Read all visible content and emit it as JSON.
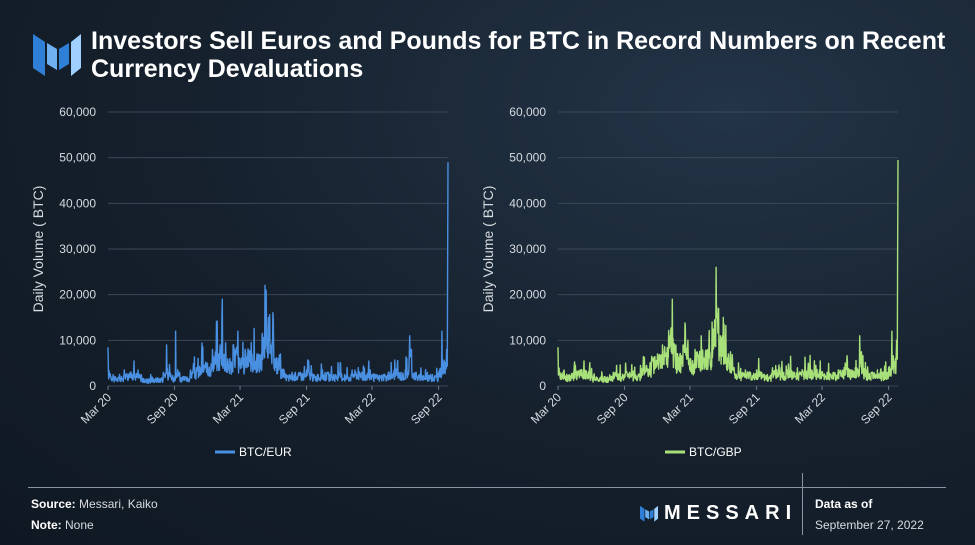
{
  "title": "Investors Sell Euros and Pounds for BTC in Record Numbers on Recent Currency Devaluations",
  "footer": {
    "source_label": "Source:",
    "source_value": "Messari, Kaiko",
    "note_label": "Note:",
    "note_value": "None",
    "brand": "MESSARI",
    "asof_label": "Data as of",
    "asof_date": "September 27, 2022"
  },
  "colors": {
    "eur": "#4a90e2",
    "gbp": "#a8e07a",
    "grid": "#3a4856",
    "axis_text": "#d6dbe0"
  },
  "chart_data": [
    {
      "type": "line",
      "ylabel": "Daily Volume ( BTC)",
      "xlabel": "",
      "ylim": [
        0,
        60000
      ],
      "yticks": [
        "0",
        "10,000",
        "20,000",
        "30,000",
        "40,000",
        "50,000",
        "60,000"
      ],
      "xticks": [
        "Mar 20",
        "Sep 20",
        "Mar 21",
        "Sep 21",
        "Mar 22",
        "Sep 22"
      ],
      "legend_position": "bottom",
      "grid": true,
      "series": [
        {
          "name": "BTC/EUR",
          "color": "#4a90e2",
          "x": [
            "2020-03-01",
            "2020-03-15",
            "2020-04-01",
            "2020-04-15",
            "2020-05-01",
            "2020-05-12",
            "2020-06-01",
            "2020-06-15",
            "2020-07-01",
            "2020-07-15",
            "2020-08-01",
            "2020-08-10",
            "2020-09-01",
            "2020-09-04",
            "2020-09-15",
            "2020-10-01",
            "2020-10-15",
            "2020-11-01",
            "2020-11-15",
            "2020-12-01",
            "2020-12-15",
            "2021-01-05",
            "2021-01-11",
            "2021-01-21",
            "2021-02-01",
            "2021-02-10",
            "2021-02-23",
            "2021-03-01",
            "2021-03-15",
            "2021-04-01",
            "2021-04-18",
            "2021-05-01",
            "2021-05-12",
            "2021-05-19",
            "2021-05-24",
            "2021-06-01",
            "2021-06-15",
            "2021-06-21",
            "2021-07-01",
            "2021-07-15",
            "2021-08-01",
            "2021-08-15",
            "2021-09-01",
            "2021-09-07",
            "2021-09-15",
            "2021-10-01",
            "2021-10-15",
            "2021-11-01",
            "2021-11-15",
            "2021-12-04",
            "2021-12-15",
            "2022-01-05",
            "2022-01-22",
            "2022-02-01",
            "2022-02-24",
            "2022-03-15",
            "2022-04-01",
            "2022-04-15",
            "2022-05-01",
            "2022-05-10",
            "2022-05-20",
            "2022-06-01",
            "2022-06-13",
            "2022-06-18",
            "2022-07-01",
            "2022-07-15",
            "2022-08-01",
            "2022-08-15",
            "2022-09-01",
            "2022-09-10",
            "2022-09-20",
            "2022-09-23",
            "2022-09-26",
            "2022-09-27"
          ],
          "y": [
            8500,
            2500,
            2000,
            3500,
            3000,
            5500,
            2500,
            1500,
            2000,
            1800,
            3000,
            9000,
            2000,
            12000,
            3000,
            2000,
            3500,
            4000,
            7500,
            5000,
            8000,
            9000,
            19000,
            7000,
            6000,
            9000,
            12000,
            6000,
            8000,
            9500,
            7000,
            11000,
            21000,
            15000,
            9000,
            14500,
            6000,
            7000,
            3500,
            2500,
            3000,
            3000,
            3500,
            5500,
            3000,
            2500,
            3500,
            3000,
            2500,
            5000,
            2500,
            3500,
            4000,
            3000,
            3500,
            2500,
            2500,
            3000,
            3500,
            5000,
            3000,
            3500,
            11000,
            8000,
            3000,
            2500,
            3000,
            2500,
            3000,
            12000,
            5000,
            8000,
            25000,
            49000
          ]
        }
      ]
    },
    {
      "type": "line",
      "ylabel": "Daily Volume ( BTC)",
      "xlabel": "",
      "ylim": [
        0,
        60000
      ],
      "yticks": [
        "0",
        "10,000",
        "20,000",
        "30,000",
        "40,000",
        "50,000",
        "60,000"
      ],
      "xticks": [
        "Mar 20",
        "Sep 20",
        "Mar 21",
        "Sep 21",
        "Mar 22",
        "Sep 22"
      ],
      "legend_position": "bottom",
      "grid": true,
      "series": [
        {
          "name": "BTC/GBP",
          "color": "#a8e07a",
          "x": [
            "2020-03-01",
            "2020-03-15",
            "2020-04-01",
            "2020-04-15",
            "2020-05-01",
            "2020-05-12",
            "2020-06-01",
            "2020-06-15",
            "2020-07-01",
            "2020-07-15",
            "2020-08-01",
            "2020-08-10",
            "2020-09-01",
            "2020-09-04",
            "2020-09-15",
            "2020-10-01",
            "2020-10-15",
            "2020-11-01",
            "2020-11-15",
            "2020-12-01",
            "2020-12-15",
            "2021-01-05",
            "2021-01-11",
            "2021-01-21",
            "2021-02-01",
            "2021-02-10",
            "2021-02-23",
            "2021-03-01",
            "2021-03-15",
            "2021-04-01",
            "2021-04-18",
            "2021-05-01",
            "2021-05-12",
            "2021-05-19",
            "2021-05-24",
            "2021-06-01",
            "2021-06-15",
            "2021-06-21",
            "2021-07-01",
            "2021-07-15",
            "2021-08-01",
            "2021-08-15",
            "2021-09-01",
            "2021-09-07",
            "2021-09-15",
            "2021-10-01",
            "2021-10-15",
            "2021-11-01",
            "2021-11-15",
            "2021-12-04",
            "2021-12-15",
            "2022-01-05",
            "2022-01-22",
            "2022-02-01",
            "2022-02-24",
            "2022-03-15",
            "2022-04-01",
            "2022-04-15",
            "2022-05-01",
            "2022-05-10",
            "2022-05-20",
            "2022-06-01",
            "2022-06-13",
            "2022-06-18",
            "2022-07-01",
            "2022-07-15",
            "2022-08-01",
            "2022-08-15",
            "2022-09-01",
            "2022-09-10",
            "2022-09-20",
            "2022-09-23",
            "2022-09-26",
            "2022-09-27"
          ],
          "y": [
            8500,
            3000,
            2500,
            4500,
            3500,
            5500,
            3000,
            2000,
            2500,
            2000,
            3000,
            4500,
            2500,
            5000,
            3000,
            2500,
            4500,
            4500,
            6500,
            7000,
            9000,
            11000,
            19000,
            9000,
            7000,
            9000,
            10000,
            6000,
            8000,
            11000,
            8000,
            14000,
            26000,
            17000,
            11000,
            15000,
            7000,
            7500,
            4000,
            3000,
            3500,
            3000,
            3500,
            6000,
            3000,
            2500,
            4000,
            3500,
            3000,
            6500,
            3000,
            3500,
            5000,
            3500,
            5500,
            3000,
            3000,
            3500,
            4000,
            5500,
            3500,
            4000,
            11000,
            7500,
            3500,
            3000,
            3500,
            3000,
            4000,
            12000,
            6000,
            10000,
            28000,
            49500
          ]
        }
      ]
    }
  ]
}
